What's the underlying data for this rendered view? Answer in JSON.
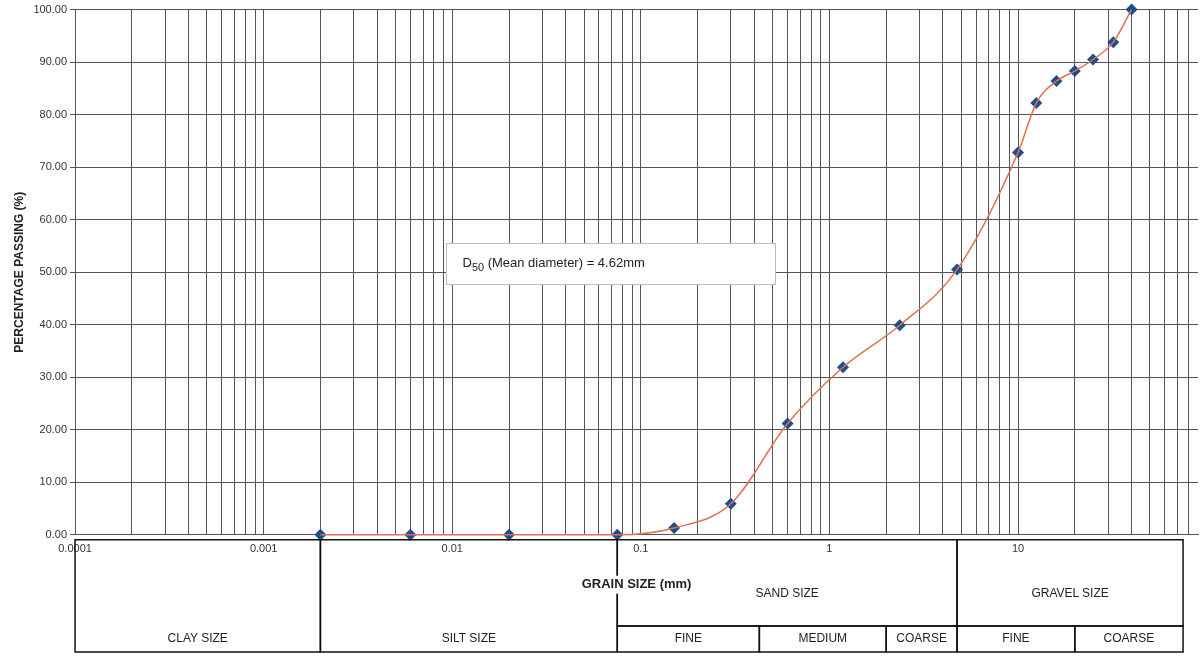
{
  "chart_data": {
    "type": "line",
    "xlabel": "GRAIN SIZE (mm)",
    "ylabel": "PERCENTAGE PASSING (%)",
    "log": "x",
    "grid": true,
    "legend": false,
    "x": [
      0.002,
      0.006,
      0.02,
      0.075,
      0.15,
      0.3,
      0.6,
      1.18,
      2.36,
      4.75,
      10,
      12.5,
      16,
      20,
      25,
      32,
      40
    ],
    "series": [
      {
        "type": "line",
        "color": "#e07050",
        "marker": "none",
        "line_style": "solid",
        "values": [
          0,
          0,
          0,
          0,
          1.3,
          5.9,
          21.2,
          31.9,
          39.9,
          50.5,
          72.8,
          82.2,
          86.4,
          88.3,
          90.5,
          93.8,
          100
        ]
      },
      {
        "type": "scatter",
        "color": "#1f4e8c",
        "marker": "diamond",
        "values": [
          0,
          0,
          0,
          0,
          1.3,
          5.9,
          21.2,
          31.9,
          39.9,
          50.5,
          72.8,
          82.2,
          86.4,
          88.3,
          90.5,
          93.8,
          100
        ]
      }
    ],
    "xlim": [
      0.0001,
      90
    ],
    "xticks": [
      0.0001,
      {
        "value": 0.0002,
        "label": null
      },
      {
        "value": 0.0003,
        "label": null
      },
      {
        "value": 0.0004,
        "label": null
      },
      {
        "value": 0.0005,
        "label": null
      },
      {
        "value": 0.0006,
        "label": null
      },
      {
        "value": 0.0007,
        "label": null
      },
      {
        "value": 0.0008,
        "label": null
      },
      {
        "value": 0.0009,
        "label": null
      },
      0.001,
      {
        "value": 0.002,
        "label": null
      },
      {
        "value": 0.003,
        "label": null
      },
      {
        "value": 0.004,
        "label": null
      },
      {
        "value": 0.005,
        "label": null
      },
      {
        "value": 0.006,
        "label": null
      },
      {
        "value": 0.007,
        "label": null
      },
      {
        "value": 0.008,
        "label": null
      },
      {
        "value": 0.009,
        "label": null
      },
      0.01,
      {
        "value": 0.02,
        "label": null
      },
      {
        "value": 0.03,
        "label": null
      },
      {
        "value": 0.04,
        "label": null
      },
      {
        "value": 0.05,
        "label": null
      },
      {
        "value": 0.06,
        "label": null
      },
      {
        "value": 0.07,
        "label": null
      },
      {
        "value": 0.08,
        "label": null
      },
      {
        "value": 0.09,
        "label": null
      },
      0.1,
      {
        "value": 0.2,
        "label": null
      },
      {
        "value": 0.3,
        "label": null
      },
      {
        "value": 0.4,
        "label": null
      },
      {
        "value": 0.5,
        "label": null
      },
      {
        "value": 0.6,
        "label": null
      },
      {
        "value": 0.7,
        "label": null
      },
      {
        "value": 0.8,
        "label": null
      },
      {
        "value": 0.9,
        "label": null
      },
      1,
      {
        "value": 2,
        "label": null
      },
      {
        "value": 3,
        "label": null
      },
      {
        "value": 4,
        "label": null
      },
      {
        "value": 5,
        "label": null
      },
      {
        "value": 6,
        "label": null
      },
      {
        "value": 7,
        "label": null
      },
      {
        "value": 8,
        "label": null
      },
      {
        "value": 9,
        "label": null
      },
      10,
      {
        "value": 20,
        "label": null
      },
      {
        "value": 30,
        "label": null
      },
      {
        "value": 40,
        "label": null
      },
      {
        "value": 50,
        "label": null
      },
      {
        "value": 60,
        "label": null
      },
      {
        "value": 70,
        "label": null
      },
      {
        "value": 80,
        "label": null
      }
    ],
    "ylim": [
      0,
      100
    ],
    "yticks": [
      {
        "value": 0,
        "label": "0.00"
      },
      {
        "value": 10,
        "label": "10.00"
      },
      {
        "value": 20,
        "label": "20.00"
      },
      {
        "value": 30,
        "label": "30.00"
      },
      {
        "value": 40,
        "label": "40.00"
      },
      {
        "value": 50,
        "label": "50.00"
      },
      {
        "value": 60,
        "label": "60.00"
      },
      {
        "value": 70,
        "label": "70.00"
      },
      {
        "value": 80,
        "label": "80.00"
      },
      {
        "value": 90,
        "label": "90.00"
      },
      {
        "value": 100,
        "label": "100.00"
      }
    ],
    "annotations": [
      "D$_{50}$ (Mean diameter)  = 4.62mm",
      "CLAY SIZE",
      "SILT SIZE",
      "SAND SIZE",
      "FINE",
      "MEDIUM",
      "COARSE",
      "GRAVEL SIZE",
      "FINE",
      "COARSE"
    ]
  }
}
